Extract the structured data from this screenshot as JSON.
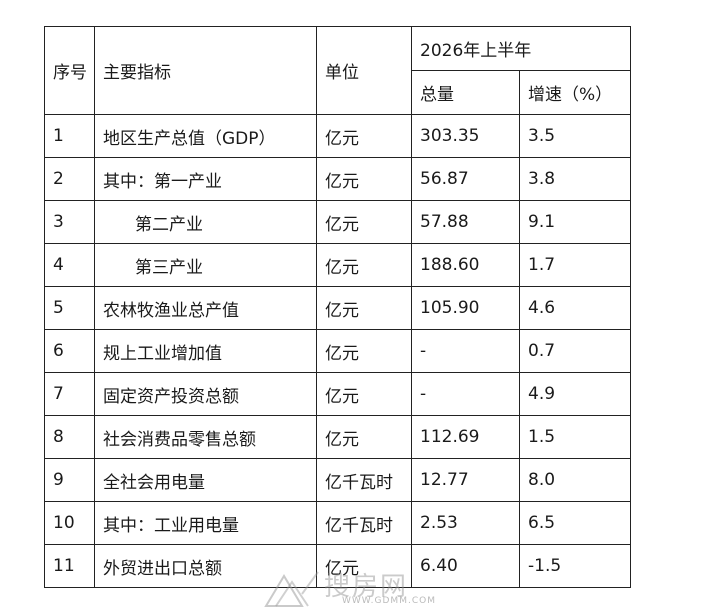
{
  "header": {
    "col_index": "序号",
    "col_indicator": "主要指标",
    "col_unit": "单位",
    "period": "2026年上半年",
    "col_total": "总量",
    "col_growth": "增速（%）"
  },
  "rows": [
    {
      "index": "1",
      "indicator": "地区生产总值（GDP）",
      "unit": "亿元",
      "total": "303.35",
      "growth": "3.5"
    },
    {
      "index": "2",
      "indicator": "其中：第一产业",
      "unit": "亿元",
      "total": "56.87",
      "growth": "3.8"
    },
    {
      "index": "3",
      "indicator": "第二产业",
      "unit": "亿元",
      "total": "57.88",
      "growth": "9.1"
    },
    {
      "index": "4",
      "indicator": "第三产业",
      "unit": "亿元",
      "total": "188.60",
      "growth": "1.7"
    },
    {
      "index": "5",
      "indicator": "农林牧渔业总产值",
      "unit": "亿元",
      "total": "105.90",
      "growth": "4.6"
    },
    {
      "index": "6",
      "indicator": "规上工业增加值",
      "unit": "亿元",
      "total": "-",
      "growth": "0.7"
    },
    {
      "index": "7",
      "indicator": "固定资产投资总额",
      "unit": "亿元",
      "total": "-",
      "growth": "4.9"
    },
    {
      "index": "8",
      "indicator": "社会消费品零售总额",
      "unit": "亿元",
      "total": "112.69",
      "growth": "1.5"
    },
    {
      "index": "9",
      "indicator": "全社会用电量",
      "unit": "亿千瓦时",
      "total": "12.77",
      "growth": "8.0"
    },
    {
      "index": "10",
      "indicator": "其中：工业用电量",
      "unit": "亿千瓦时",
      "total": "2.53",
      "growth": "6.5"
    },
    {
      "index": "11",
      "indicator": "外贸进出口总额",
      "unit": "亿元",
      "total": "6.40",
      "growth": "-1.5"
    }
  ],
  "watermark": {
    "text": "搜房网",
    "url": "WWW.GDMM.COM"
  }
}
